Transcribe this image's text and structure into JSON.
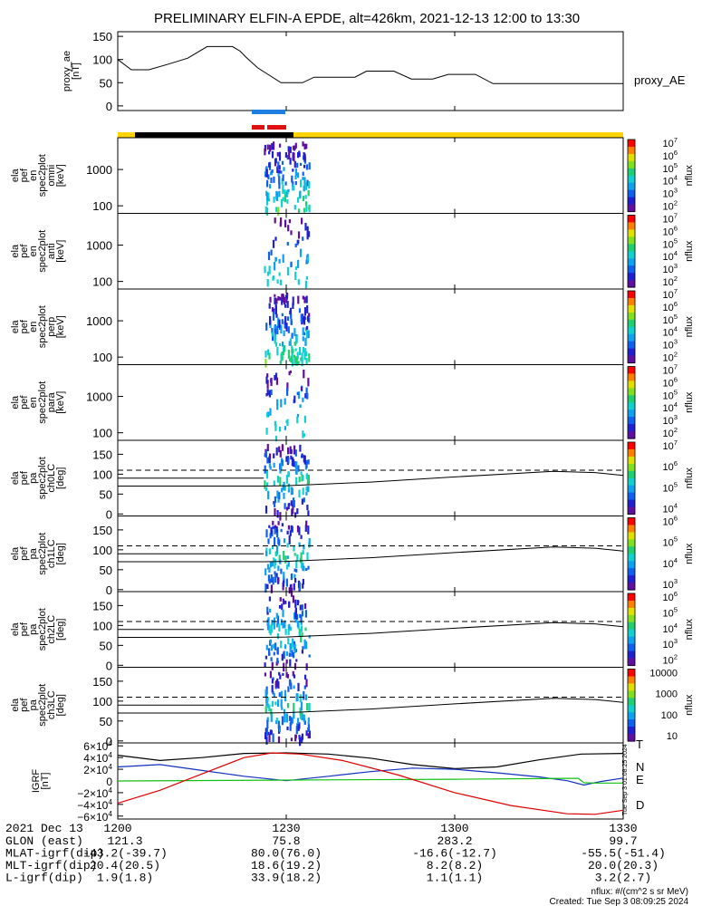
{
  "title": "PRELIMINARY ELFIN-A EPDE, alt=426km, 2021-12-13 12:00 to 13:30",
  "colors": {
    "bar_yellow": "#ffd400",
    "bar_black": "#000000",
    "marker_blue": "#1e7fe0",
    "marker_red": "#e01010",
    "trace_black": "#000000",
    "trace_blue": "#1030c0",
    "trace_green": "#10c010",
    "trace_red": "#e00000"
  },
  "chart_data": [
    {
      "id": "proxy_ae",
      "type": "line",
      "ylabel": "proxy_ae\n[nT]",
      "yticks": [
        "150",
        "100",
        "50",
        "0"
      ],
      "ylim": [
        -10,
        160
      ],
      "legend": "proxy_AE",
      "x_minutes": [
        0,
        7,
        16,
        26,
        36,
        46,
        52,
        59,
        63,
        66,
        72,
        84,
        95,
        101,
        109,
        117,
        122,
        128,
        138,
        142,
        151,
        158,
        162,
        170,
        178,
        184,
        193,
        203,
        208,
        214,
        225,
        236,
        250,
        260
      ],
      "values": [
        100,
        78,
        78,
        90,
        103,
        128,
        128,
        128,
        118,
        105,
        82,
        50,
        50,
        62,
        62,
        62,
        62,
        75,
        75,
        75,
        58,
        58,
        58,
        68,
        68,
        68,
        48,
        48,
        48,
        48,
        48,
        48,
        48,
        48
      ]
    },
    {
      "id": "energy_spectrograms",
      "type": "heatmap",
      "panels": [
        {
          "ylabel": "ela\npef\nen\nspec2plot\nomni\n[keV]",
          "yticks": [
            "1000",
            "100"
          ]
        },
        {
          "ylabel": "ela\npef\nen\nspec2plot\nanti\n[keV]",
          "yticks": [
            "1000",
            "100"
          ]
        },
        {
          "ylabel": "ela\npef\nen\nspec2plot\nperp\n[keV]",
          "yticks": [
            "1000",
            "100"
          ]
        },
        {
          "ylabel": "ela\npef\nen\nspec2plot\npara\n[keV]",
          "yticks": [
            "1000",
            "100"
          ]
        }
      ],
      "colorbar_label": "nflux",
      "colorbar_ticks": [
        "10^7",
        "10^6",
        "10^5",
        "10^4",
        "10^3",
        "10^2"
      ]
    },
    {
      "id": "pitch_angle_spectrograms",
      "type": "heatmap",
      "panels": [
        {
          "ylabel": "ela\npef\npa\nspec2plot\nch0LC\n[deg]",
          "yticks": [
            "150",
            "100",
            "50",
            "0"
          ],
          "cbar": [
            "10^7",
            "10^6",
            "10^5",
            "10^4"
          ]
        },
        {
          "ylabel": "ela\npef\npa\nspec2plot\nch1LC\n[deg]",
          "yticks": [
            "150",
            "100",
            "50",
            "0"
          ],
          "cbar": [
            "10^6",
            "10^5",
            "10^4",
            "10^3"
          ]
        },
        {
          "ylabel": "ela\npef\npa\nspec2plot\nch2LC\n[deg]",
          "yticks": [
            "150",
            "100",
            "50",
            "0"
          ],
          "cbar": [
            "10^6",
            "10^5",
            "10^4",
            "10^3",
            "10^2"
          ]
        },
        {
          "ylabel": "ela\npef\npa\nspec2plot\nch3LC\n[deg]",
          "yticks": [
            "150",
            "100",
            "50",
            "0"
          ],
          "cbar": [
            "10000",
            "1000",
            "100",
            "10"
          ]
        }
      ],
      "ylim": [
        -5,
        185
      ],
      "loss_cone_solid_lower": 70,
      "antiloss_cone_dashed": 110,
      "losscone_curve_minutes": [
        52,
        60,
        90,
        120,
        155,
        170,
        180
      ],
      "losscone_curve_values": [
        70,
        71,
        80,
        93,
        107,
        104,
        97
      ]
    },
    {
      "id": "igrf",
      "type": "line",
      "ylabel": "IGRF\n[nT]",
      "yticks": [
        "6×10^4",
        "4×10^4",
        "2×10^4",
        "0",
        "−2×10^4",
        "−4×10^4",
        "−6×10^4"
      ],
      "ylim": [
        -65000,
        65000
      ],
      "series": [
        {
          "name": "T",
          "color": "#000000",
          "x_minutes": [
            0,
            15,
            30,
            45,
            60,
            75,
            90,
            105,
            120,
            135,
            150,
            165,
            180
          ],
          "values": [
            44000,
            35000,
            40000,
            47000,
            48000,
            46000,
            39000,
            28000,
            21000,
            24000,
            36000,
            46000,
            47000
          ]
        },
        {
          "name": "N",
          "color": "#1030c0",
          "x_minutes": [
            0,
            15,
            30,
            45,
            60,
            75,
            90,
            105,
            120,
            135,
            150,
            160,
            166,
            172,
            180
          ],
          "values": [
            24000,
            28000,
            18000,
            8000,
            500,
            8000,
            16000,
            22000,
            20000,
            14000,
            7000,
            500,
            -7000,
            -1000,
            5000
          ]
        },
        {
          "name": "E",
          "color": "#10c010",
          "x_minutes": [
            0,
            40,
            80,
            120,
            160,
            164,
            166,
            170,
            180
          ],
          "values": [
            0,
            1000,
            2000,
            3000,
            4500,
            4500,
            -3000,
            -3500,
            -3500
          ]
        },
        {
          "name": "D",
          "color": "#e00000",
          "x_minutes": [
            0,
            15,
            30,
            45,
            55,
            65,
            80,
            100,
            120,
            140,
            160,
            170,
            180
          ],
          "values": [
            -38000,
            -16000,
            12000,
            40000,
            48000,
            46000,
            35000,
            10000,
            -20000,
            -42000,
            -56000,
            -57000,
            -50000
          ]
        }
      ]
    }
  ],
  "xaxis": {
    "date": "2021 Dec 13",
    "ticks": [
      "1200",
      "1230",
      "1300",
      "1330"
    ],
    "rows": [
      {
        "label": "GLON (east)",
        "values": [
          "121.3",
          "75.8",
          "283.2",
          "99.7"
        ]
      },
      {
        "label": "MLAT-igrf(dip)",
        "values": [
          "-43.2(-39.7)",
          "80.0(76.0)",
          "-16.6(-12.7)",
          "-55.5(-51.4)"
        ]
      },
      {
        "label": "MLT-igrf(dip)",
        "values": [
          "20.4(20.5)",
          "18.6(19.2)",
          "8.2(8.2)",
          "20.0(20.3)"
        ]
      },
      {
        "label": "L-igrf(dip)",
        "values": [
          "1.9(1.8)",
          "33.9(18.2)",
          "1.1(1.1)",
          "3.2(2.7)"
        ]
      }
    ]
  },
  "footer": {
    "units": "nflux: #/(cm^2 s sr MeV)",
    "created": "Created: Tue Sep  3 08:09:25 2024",
    "side_stamp": "Tue Sep  3 01:08:25 2024"
  }
}
